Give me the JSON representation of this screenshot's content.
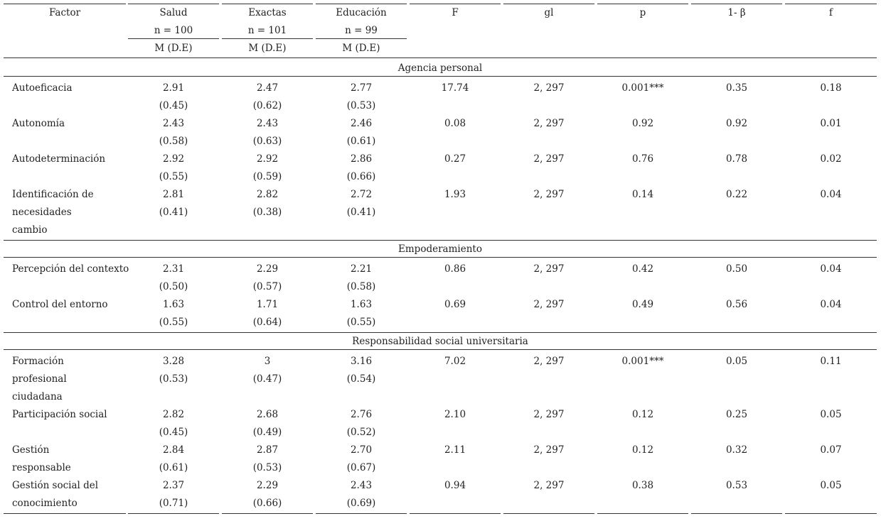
{
  "header": {
    "factor": "Factor",
    "groups": [
      {
        "name": "Salud",
        "n": "n = 100",
        "stat": "M (D.E)"
      },
      {
        "name": "Exactas",
        "n": "n = 101",
        "stat": "M (D.E)"
      },
      {
        "name": "Educación",
        "n": "n = 99",
        "stat": "M (D.E)"
      }
    ],
    "F": "F",
    "gl": "gl",
    "p": "p",
    "power": "1- β",
    "f": "f"
  },
  "sections": [
    {
      "title": "Agencia personal",
      "rows": [
        {
          "label": [
            "Autoeficacia"
          ],
          "means": [
            "2.91",
            "2.47",
            "2.77"
          ],
          "sds": [
            "(0.45)",
            "(0.62)",
            "(0.53)"
          ],
          "F": "17.74",
          "gl": "2, 297",
          "p": "0.001***",
          "power": "0.35",
          "f": "0.18"
        },
        {
          "label": [
            "Autonomía"
          ],
          "means": [
            "2.43",
            "2.43",
            "2.46"
          ],
          "sds": [
            "(0.58)",
            "(0.63)",
            "(0.61)"
          ],
          "F": "0.08",
          "gl": "2, 297",
          "p": "0.92",
          "power": "0.92",
          "f": "0.01"
        },
        {
          "label": [
            "Autodeterminación"
          ],
          "means": [
            "2.92",
            "2.92",
            "2.86"
          ],
          "sds": [
            "(0.55)",
            "(0.59)",
            "(0.66)"
          ],
          "F": "0.27",
          "gl": "2, 297",
          "p": "0.76",
          "power": "0.78",
          "f": "0.02"
        },
        {
          "label": [
            "Identificación de",
            "necesidades",
            "cambio"
          ],
          "means": [
            "2.81",
            "2.82",
            "2.72"
          ],
          "sds": [
            "(0.41)",
            "(0.38)",
            "(0.41)"
          ],
          "F": "1.93",
          "gl": "2, 297",
          "p": "0.14",
          "power": "0.22",
          "f": "0.04"
        }
      ]
    },
    {
      "title": "Empoderamiento",
      "rows": [
        {
          "label": [
            "Percepción del contexto"
          ],
          "means": [
            "2.31",
            "2.29",
            "2.21"
          ],
          "sds": [
            "(0.50)",
            "(0.57)",
            "(0.58)"
          ],
          "F": "0.86",
          "gl": "2, 297",
          "p": "0.42",
          "power": "0.50",
          "f": "0.04"
        },
        {
          "label": [
            "Control del entorno"
          ],
          "means": [
            "1.63",
            "1.71",
            "1.63"
          ],
          "sds": [
            "(0.55)",
            "(0.64)",
            "(0.55)"
          ],
          "F": "0.69",
          "gl": "2, 297",
          "p": "0.49",
          "power": "0.56",
          "f": "0.04"
        }
      ]
    },
    {
      "title": "Responsabilidad social universitaria",
      "rows": [
        {
          "label": [
            "Formación",
            "profesional",
            "ciudadana"
          ],
          "means": [
            "3.28",
            "3",
            "3.16"
          ],
          "sds": [
            "(0.53)",
            "(0.47)",
            "(0.54)"
          ],
          "F": "7.02",
          "gl": "2, 297",
          "p": "0.001***",
          "power": "0.05",
          "f": "0.11"
        },
        {
          "label": [
            "Participación social"
          ],
          "means": [
            "2.82",
            "2.68",
            "2.76"
          ],
          "sds": [
            "(0.45)",
            "(0.49)",
            "(0.52)"
          ],
          "F": "2.10",
          "gl": "2, 297",
          "p": "0.12",
          "power": "0.25",
          "f": "0.05"
        },
        {
          "label": [
            "Gestión",
            "responsable"
          ],
          "means": [
            "2.84",
            "2.87",
            "2.70"
          ],
          "sds": [
            "(0.61)",
            "(0.53)",
            "(0.67)"
          ],
          "F": "2.11",
          "gl": "2, 297",
          "p": "0.12",
          "power": "0.32",
          "f": "0.07"
        },
        {
          "label": [
            "Gestión social del",
            "conocimiento"
          ],
          "means": [
            "2.37",
            "2.29",
            "2.43"
          ],
          "sds": [
            "(0.71)",
            "(0.66)",
            "(0.69)"
          ],
          "F": "0.94",
          "gl": "2, 297",
          "p": "0.38",
          "power": "0.53",
          "f": "0.05"
        }
      ]
    }
  ]
}
